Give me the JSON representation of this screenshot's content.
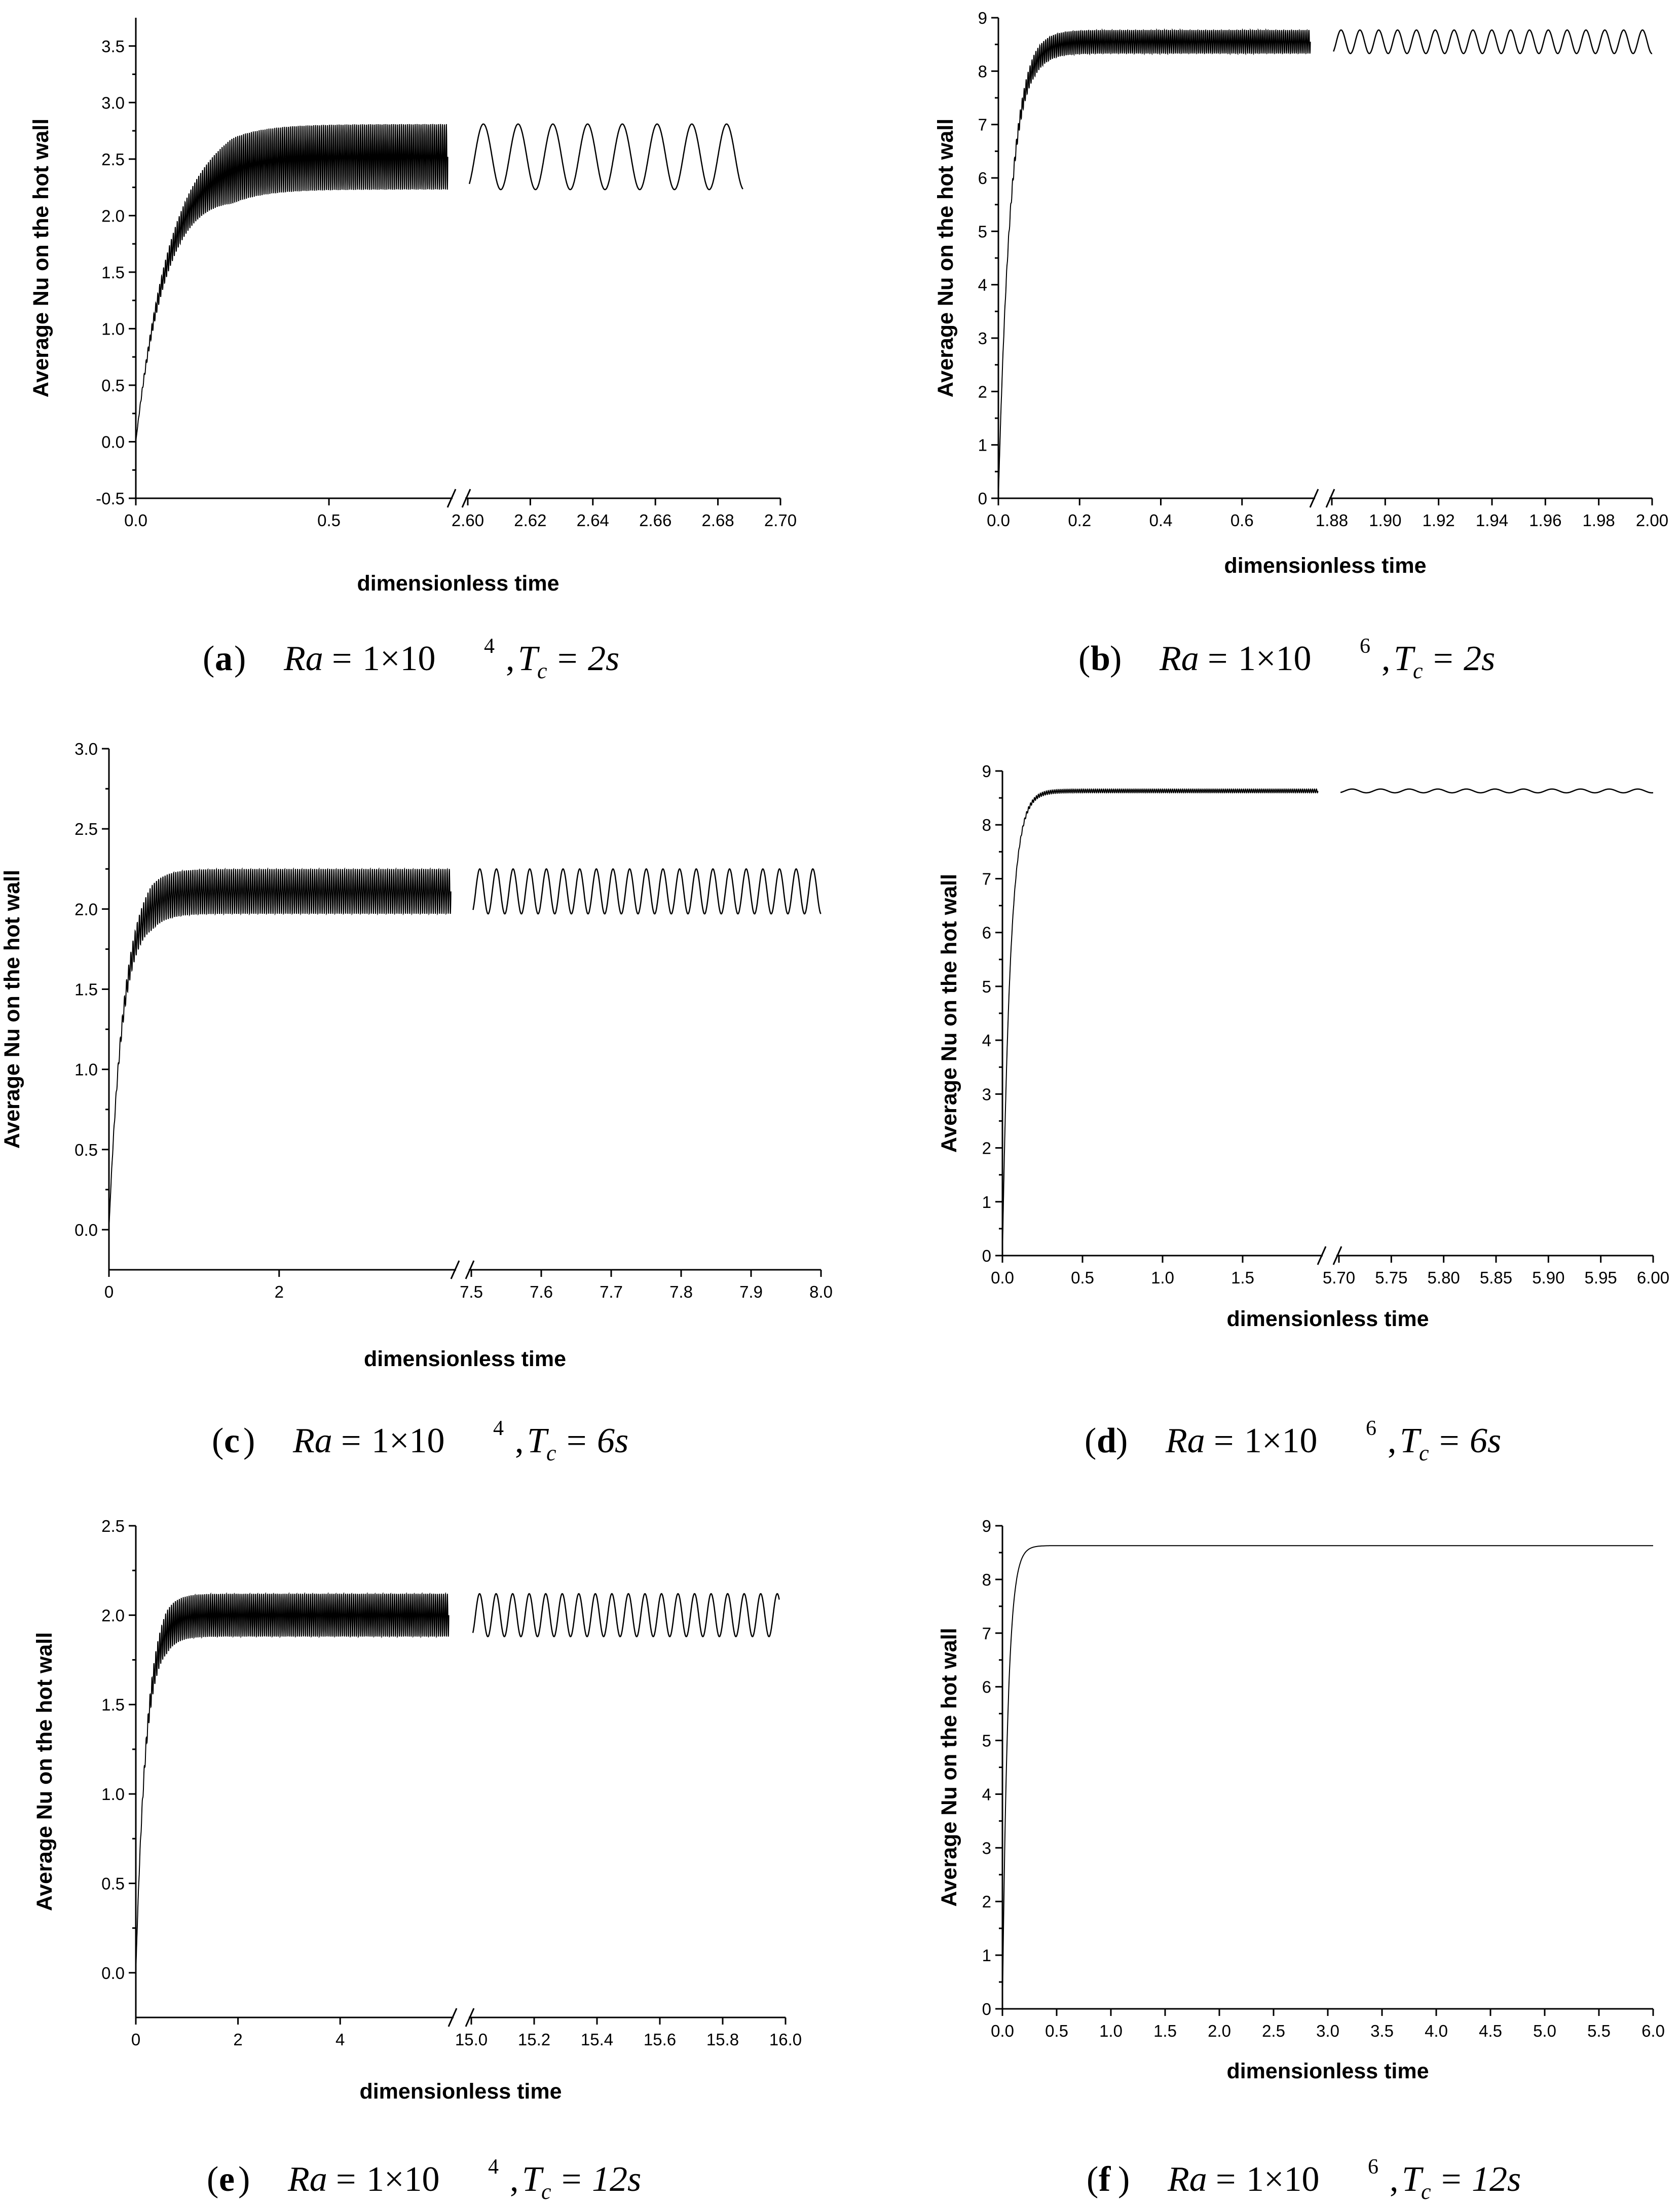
{
  "chart_data": [
    {
      "type": "line",
      "panel": "(a)",
      "caption": {
        "letter": "a",
        "ra_base": "1×10",
        "ra_exp": "4",
        "tc": "2s"
      },
      "xlabel": "dimensionless time",
      "ylabel": "Average Nu on the hot wall",
      "y_range": [
        -0.5,
        3.75
      ],
      "y_ticks": [
        "-0.5",
        "0.0",
        "0.5",
        "1.0",
        "1.5",
        "2.0",
        "2.5",
        "3.0",
        "3.5"
      ],
      "y_tick_values": [
        -0.5,
        0.0,
        0.5,
        1.0,
        1.5,
        2.0,
        2.5,
        3.0,
        3.5
      ],
      "x_broken": true,
      "x_segment1_range": [
        0.0,
        0.82
      ],
      "x_segment1_ticks": [
        "0.0",
        "0.5"
      ],
      "x_segment1_tick_values": [
        0.0,
        0.5
      ],
      "x_segment2_range": [
        2.6,
        2.7
      ],
      "x_segment2_ticks": [
        "2.60",
        "2.62",
        "2.64",
        "2.66",
        "2.68",
        "2.70"
      ],
      "x_segment2_tick_values": [
        2.6,
        2.62,
        2.64,
        2.66,
        2.68,
        2.7
      ],
      "series": [
        {
          "mean_steady": 2.52,
          "amplitude": 0.29,
          "rise_time": 0.25,
          "oscillations_segment2": 9,
          "data_end_segment2": 2.688
        }
      ],
      "grid": false
    },
    {
      "type": "line",
      "panel": "(b)",
      "caption": {
        "letter": "b",
        "ra_base": "1×10",
        "ra_exp": "6",
        "tc": "2s"
      },
      "xlabel": "dimensionless time",
      "ylabel": "Average Nu on the hot wall",
      "y_range": [
        0,
        9
      ],
      "y_ticks": [
        "0",
        "1",
        "2",
        "3",
        "4",
        "5",
        "6",
        "7",
        "8",
        "9"
      ],
      "y_tick_values": [
        0,
        1,
        2,
        3,
        4,
        5,
        6,
        7,
        8,
        9
      ],
      "x_broken": true,
      "x_segment1_range": [
        0.0,
        0.78
      ],
      "x_segment1_ticks": [
        "0.0",
        "0.2",
        "0.4",
        "0.6"
      ],
      "x_segment1_tick_values": [
        0.0,
        0.2,
        0.4,
        0.6
      ],
      "x_segment2_range": [
        1.88,
        2.0
      ],
      "x_segment2_ticks": [
        "1.88",
        "1.90",
        "1.92",
        "1.94",
        "1.96",
        "1.98",
        "2.00"
      ],
      "x_segment2_tick_values": [
        1.88,
        1.9,
        1.92,
        1.94,
        1.96,
        1.98,
        2.0
      ],
      "series": [
        {
          "mean_steady": 8.55,
          "amplitude": 0.22,
          "rise_time": 0.09,
          "oscillations_segment2": 17,
          "data_end_segment2": 2.0
        }
      ],
      "grid": false
    },
    {
      "type": "line",
      "panel": "(c)",
      "caption": {
        "letter": "c",
        "ra_base": "1×10",
        "ra_exp": "4",
        "tc": "6s"
      },
      "xlabel": "dimensionless time",
      "ylabel": "Average Nu on the hot wall",
      "y_range": [
        -0.25,
        3.0
      ],
      "y_ticks": [
        "0.0",
        "0.5",
        "1.0",
        "1.5",
        "2.0",
        "2.5",
        "3.0"
      ],
      "y_tick_values": [
        0.0,
        0.5,
        1.0,
        1.5,
        2.0,
        2.5,
        3.0
      ],
      "x_broken": true,
      "x_segment1_range": [
        0,
        4.08
      ],
      "x_segment1_ticks": [
        "0",
        "2"
      ],
      "x_segment1_tick_values": [
        0,
        2
      ],
      "x_segment2_range": [
        7.5,
        8.0
      ],
      "x_segment2_ticks": [
        "7.5",
        "7.6",
        "7.7",
        "7.8",
        "7.9",
        "8.0"
      ],
      "x_segment2_tick_values": [
        7.5,
        7.6,
        7.7,
        7.8,
        7.9,
        8.0
      ],
      "series": [
        {
          "mean_steady": 2.11,
          "amplitude": 0.14,
          "rise_time": 0.5,
          "oscillations_segment2": 21,
          "data_end_segment2": 8.0
        }
      ],
      "grid": false
    },
    {
      "type": "line",
      "panel": "(d)",
      "caption": {
        "letter": "d",
        "ra_base": "1×10",
        "ra_exp": "6",
        "tc": "6s"
      },
      "xlabel": "dimensionless time",
      "ylabel": "Average Nu on the hot wall",
      "y_range": [
        0,
        9
      ],
      "y_ticks": [
        "0",
        "1",
        "2",
        "3",
        "4",
        "5",
        "6",
        "7",
        "8",
        "9"
      ],
      "y_tick_values": [
        0,
        1,
        2,
        3,
        4,
        5,
        6,
        7,
        8,
        9
      ],
      "x_broken": true,
      "x_segment1_range": [
        0.0,
        2.0
      ],
      "x_segment1_ticks": [
        "0.0",
        "0.5",
        "1.0",
        "1.5"
      ],
      "x_segment1_tick_values": [
        0.0,
        0.5,
        1.0,
        1.5
      ],
      "x_segment2_range": [
        5.7,
        6.0
      ],
      "x_segment2_ticks": [
        "5.70",
        "5.75",
        "5.80",
        "5.85",
        "5.90",
        "5.95",
        "6.00"
      ],
      "x_segment2_tick_values": [
        5.7,
        5.75,
        5.8,
        5.85,
        5.9,
        5.95,
        6.0
      ],
      "series": [
        {
          "mean_steady": 8.63,
          "amplitude": 0.035,
          "rise_time": 0.15,
          "oscillations_segment2": 11,
          "data_end_segment2": 6.0
        }
      ],
      "grid": false
    },
    {
      "type": "line",
      "panel": "(e)",
      "caption": {
        "letter": "e",
        "ra_base": "1×10",
        "ra_exp": "4",
        "tc": "12s"
      },
      "xlabel": "dimensionless time",
      "ylabel": "Average Nu on the hot wall",
      "y_range": [
        -0.25,
        2.5
      ],
      "y_ticks": [
        "0.0",
        "0.5",
        "1.0",
        "1.5",
        "2.0",
        "2.5"
      ],
      "y_tick_values": [
        0.0,
        0.5,
        1.0,
        1.5,
        2.0,
        2.5
      ],
      "x_broken": true,
      "x_segment1_range": [
        0,
        6.22
      ],
      "x_segment1_ticks": [
        "0",
        "2",
        "4"
      ],
      "x_segment1_tick_values": [
        0,
        2,
        4
      ],
      "x_segment2_range": [
        15.0,
        16.0
      ],
      "x_segment2_ticks": [
        "15.0",
        "15.2",
        "15.4",
        "15.6",
        "15.8",
        "16.0"
      ],
      "x_segment2_tick_values": [
        15.0,
        15.2,
        15.4,
        15.6,
        15.8,
        16.0
      ],
      "series": [
        {
          "mean_steady": 2.0,
          "amplitude": 0.12,
          "rise_time": 0.6,
          "oscillations_segment2": 19,
          "data_end_segment2": 15.98
        }
      ],
      "grid": false
    },
    {
      "type": "line",
      "panel": "(f)",
      "caption": {
        "letter": "f",
        "ra_base": "1×10",
        "ra_exp": "6",
        "tc": "12s"
      },
      "xlabel": "dimensionless time",
      "ylabel": "Average Nu on the hot wall",
      "y_range": [
        0,
        9
      ],
      "y_ticks": [
        "0",
        "1",
        "2",
        "3",
        "4",
        "5",
        "6",
        "7",
        "8",
        "9"
      ],
      "y_tick_values": [
        0,
        1,
        2,
        3,
        4,
        5,
        6,
        7,
        8,
        9
      ],
      "x_broken": false,
      "x_range": [
        0.0,
        6.0
      ],
      "x_ticks": [
        "0.0",
        "0.5",
        "1.0",
        "1.5",
        "2.0",
        "2.5",
        "3.0",
        "3.5",
        "4.0",
        "4.5",
        "5.0",
        "5.5",
        "6.0"
      ],
      "x_tick_values": [
        0.0,
        0.5,
        1.0,
        1.5,
        2.0,
        2.5,
        3.0,
        3.5,
        4.0,
        4.5,
        5.0,
        5.5,
        6.0
      ],
      "series": [
        {
          "mean_steady": 8.63,
          "amplitude": 0.0,
          "rise_time": 0.15,
          "oscillations_segment2": 0,
          "data_end": 6.0
        }
      ],
      "grid": false
    }
  ]
}
